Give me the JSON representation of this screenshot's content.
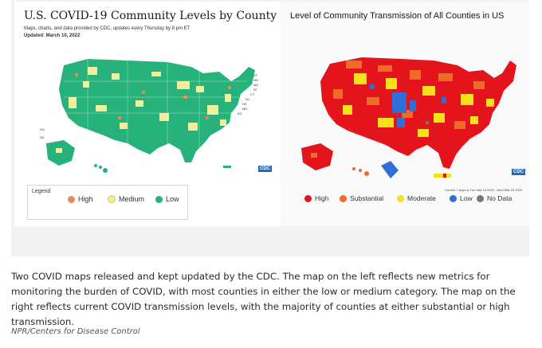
{
  "left_map": {
    "title": "U.S. COVID-19 Community Levels by County Map",
    "subtitle": "Maps, charts, and data provided by CDC, updates every Thursday by 8 pm ET",
    "updated": "Updated: March 10, 2022",
    "legend_title": "Legend",
    "legend": [
      {
        "label": "High",
        "color": "#e8875a"
      },
      {
        "label": "Medium",
        "color": "#f3ee9b"
      },
      {
        "label": "Low",
        "color": "#26b27a"
      }
    ],
    "state_labels": [
      "VT",
      "NH",
      "MA",
      "RI",
      "CT",
      "NJ",
      "DE",
      "MD",
      "DC"
    ],
    "territory_labels": [
      "GU",
      "AS"
    ],
    "badge": "CDC"
  },
  "right_map": {
    "title": "Level of Community Transmission of All Counties in US",
    "legend": [
      {
        "label": "High",
        "color": "#e3141b"
      },
      {
        "label": "Substantial",
        "color": "#ef6b2a"
      },
      {
        "label": "Moderate",
        "color": "#f5e11c"
      },
      {
        "label": "Low",
        "color": "#2f6fd6"
      },
      {
        "label": "No Data",
        "color": "#777777"
      }
    ],
    "badge": "CDC",
    "note": "Current 7-days is Thu Mar 10 2022 - Wed Mar 09 2022"
  },
  "caption": "Two COVID maps released and kept updated by the CDC. The map on the left reflects new metrics for monitoring the burden of COVID, with most counties in either the low or medium category. The map on the right reflects current COVID transmission levels, with the majority of counties at either substantial or high transmission.",
  "credit": "NPR/Centers for Disease Control"
}
